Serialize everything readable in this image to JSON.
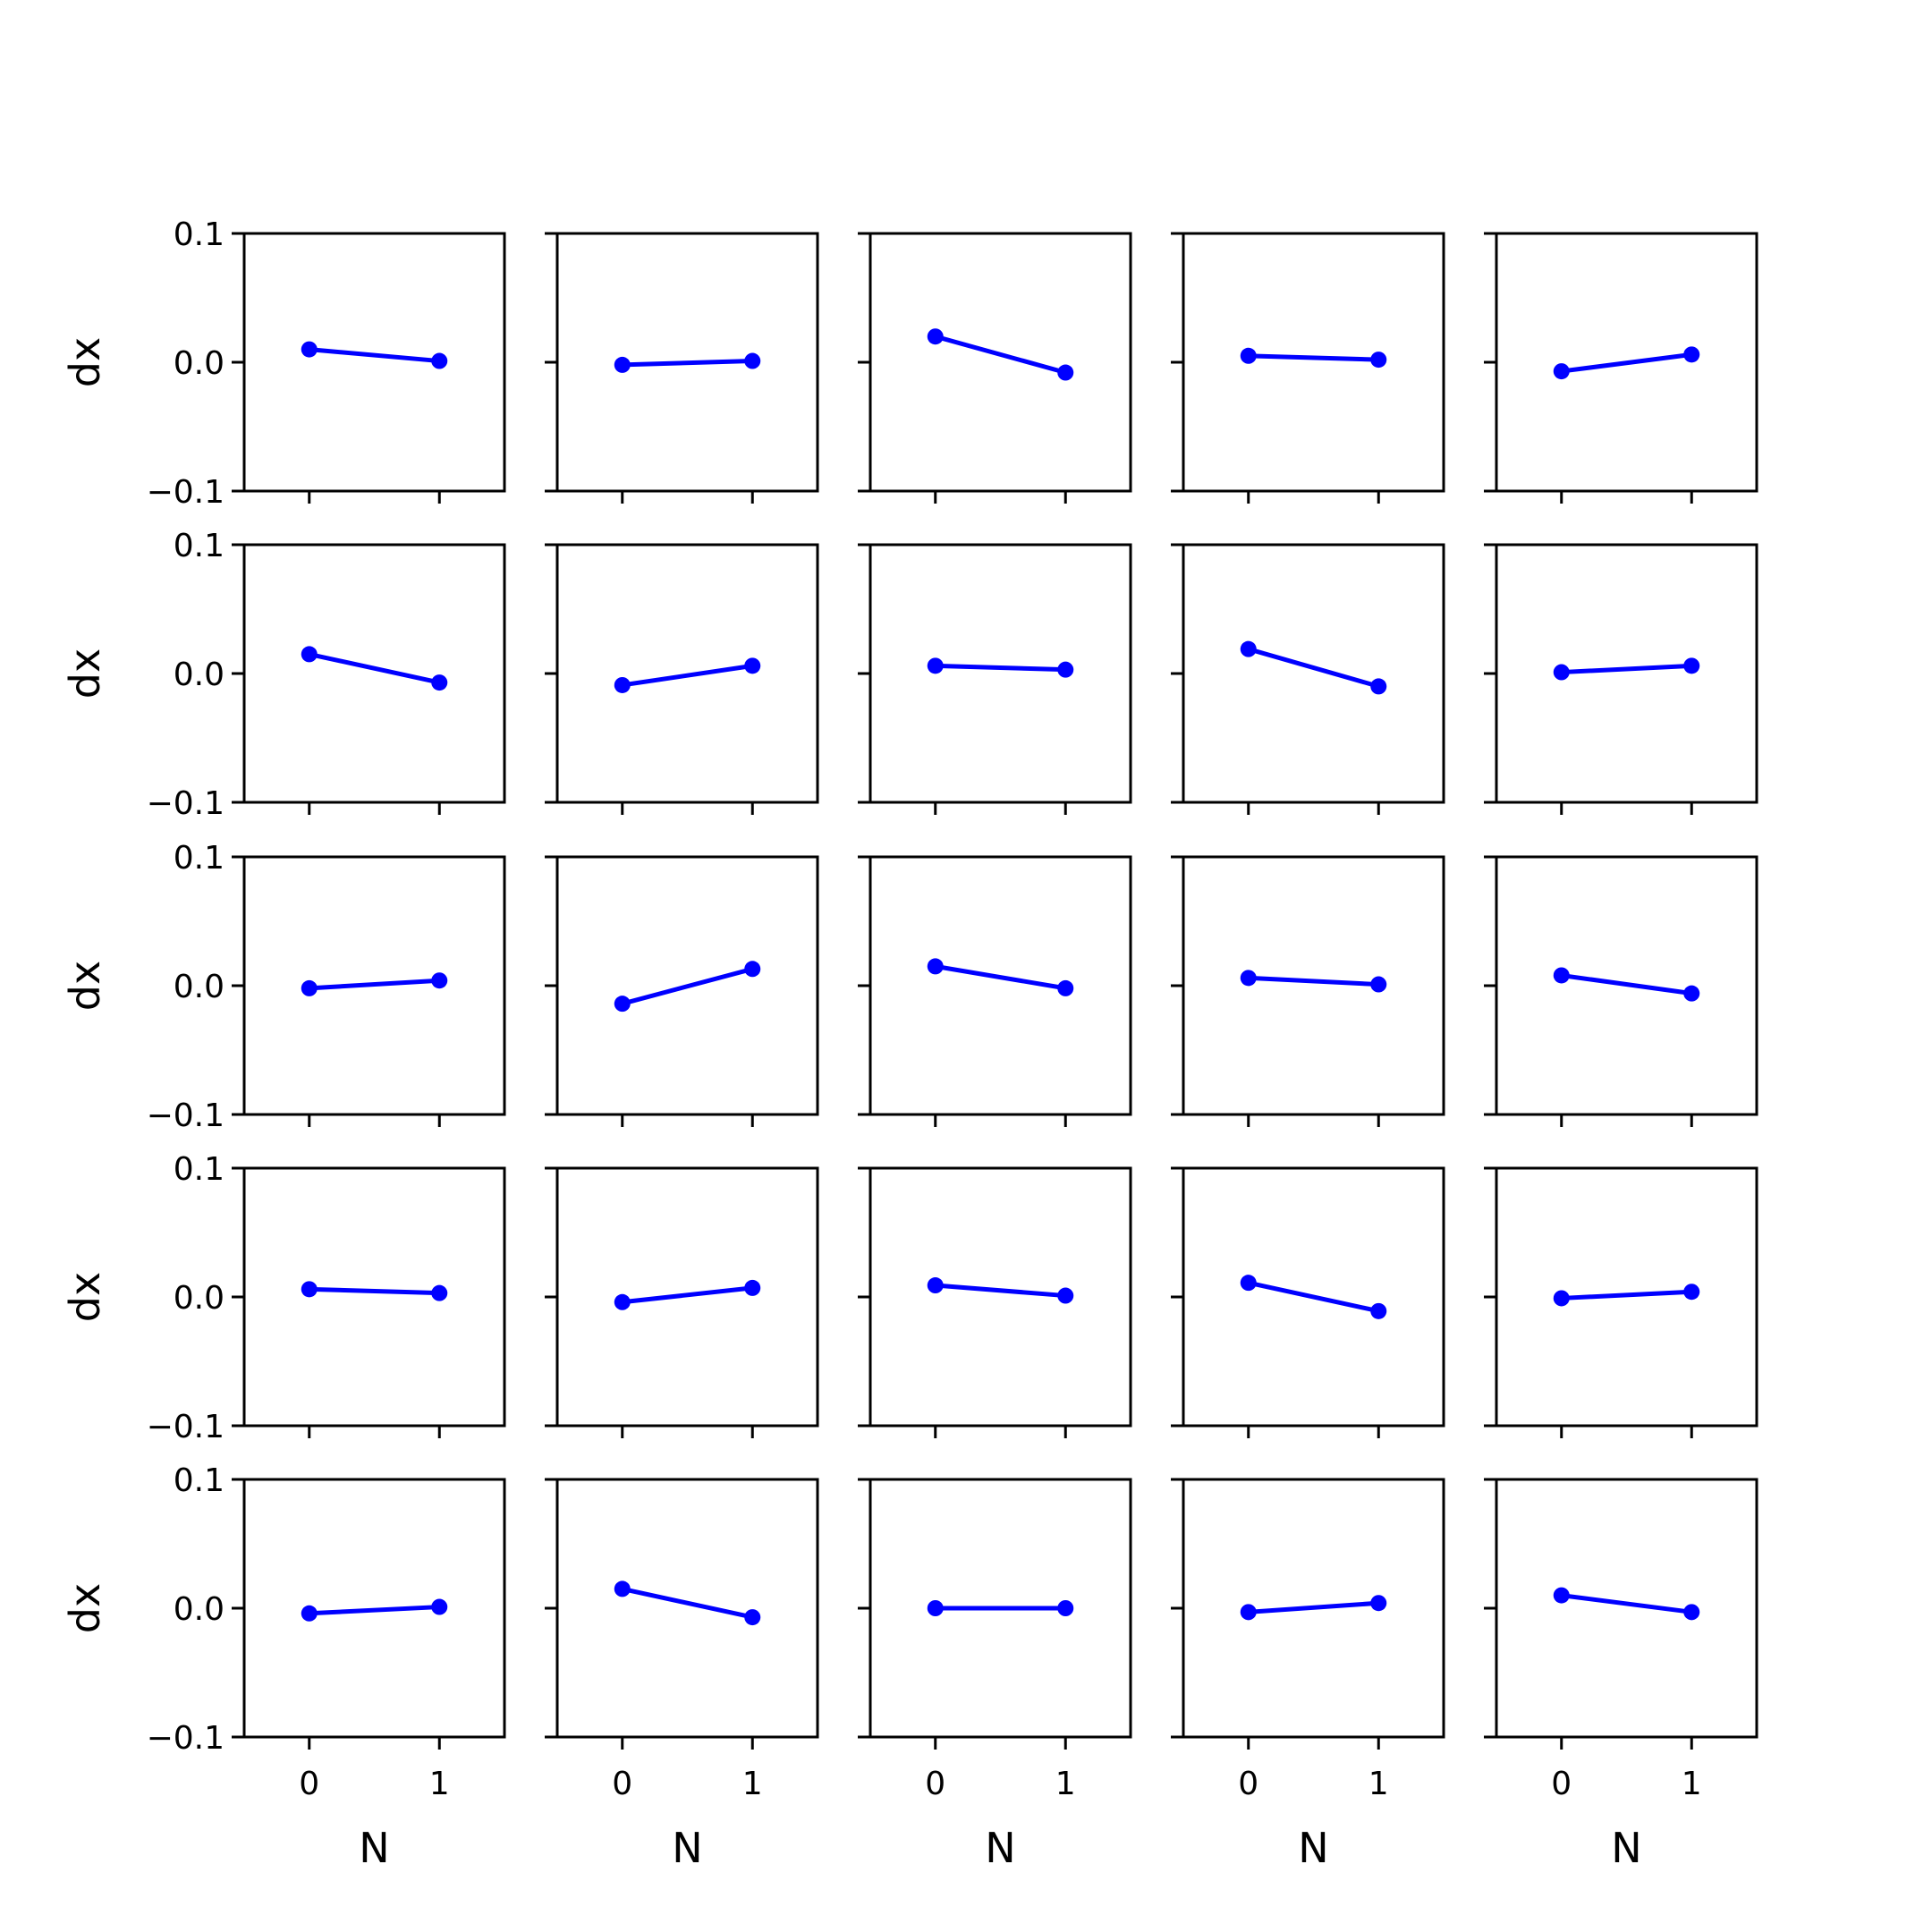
{
  "chart_data": {
    "type": "line",
    "layout": "5x5 grid of line plots",
    "xlabel": "N",
    "ylabel": "dx",
    "x": [
      0,
      1
    ],
    "xticks": [
      "0",
      "1"
    ],
    "xlim": [
      -0.5,
      1.5
    ],
    "ylim": [
      -0.1,
      0.1
    ],
    "yticks": [
      "−0.1",
      "0.0",
      "0.1"
    ],
    "marker": "circle",
    "color": "#0000ff",
    "panels": [
      {
        "values": [
          0.01,
          0.001
        ]
      },
      {
        "values": [
          -0.002,
          0.001
        ]
      },
      {
        "values": [
          0.02,
          -0.008
        ]
      },
      {
        "values": [
          0.005,
          0.002
        ]
      },
      {
        "values": [
          -0.007,
          0.006
        ]
      },
      {
        "values": [
          0.015,
          -0.007
        ]
      },
      {
        "values": [
          -0.009,
          0.006
        ]
      },
      {
        "values": [
          0.006,
          0.003
        ]
      },
      {
        "values": [
          0.019,
          -0.01
        ]
      },
      {
        "values": [
          0.001,
          0.006
        ]
      },
      {
        "values": [
          -0.002,
          0.004
        ]
      },
      {
        "values": [
          -0.014,
          0.013
        ]
      },
      {
        "values": [
          0.015,
          -0.002
        ]
      },
      {
        "values": [
          0.006,
          0.001
        ]
      },
      {
        "values": [
          0.008,
          -0.006
        ]
      },
      {
        "values": [
          0.006,
          0.003
        ]
      },
      {
        "values": [
          -0.004,
          0.007
        ]
      },
      {
        "values": [
          0.009,
          0.001
        ]
      },
      {
        "values": [
          0.011,
          -0.011
        ]
      },
      {
        "values": [
          -0.001,
          0.004
        ]
      },
      {
        "values": [
          -0.004,
          0.001
        ]
      },
      {
        "values": [
          0.015,
          -0.007
        ]
      },
      {
        "values": [
          0.0,
          0.0
        ]
      },
      {
        "values": [
          -0.003,
          0.004
        ]
      },
      {
        "values": [
          0.01,
          -0.003
        ]
      }
    ]
  }
}
